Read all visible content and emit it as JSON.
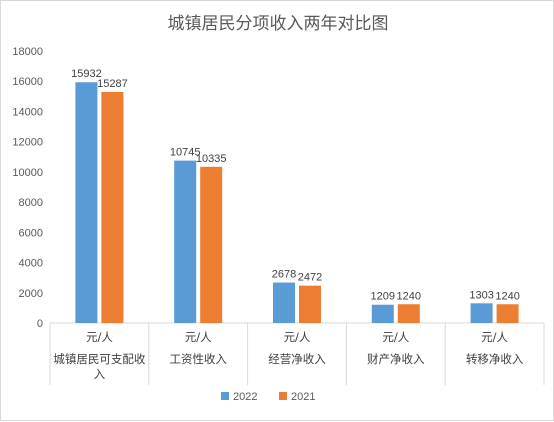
{
  "chart_data": {
    "type": "bar",
    "title": "城镇居民分项收入两年对比图",
    "unit_label": "元/人",
    "categories": [
      [
        "城镇居民可支配收",
        "入"
      ],
      [
        "工资性收入"
      ],
      [
        "经营净收入"
      ],
      [
        "财产净收入"
      ],
      [
        "转移净收入"
      ]
    ],
    "series": [
      {
        "name": "2022",
        "color": "#5b9bd5",
        "values": [
          15932,
          10745,
          2678,
          1209,
          1303
        ]
      },
      {
        "name": "2021",
        "color": "#ed7d31",
        "values": [
          15287,
          10335,
          2472,
          1240,
          1240
        ]
      }
    ],
    "ylim": [
      0,
      18000
    ],
    "yticks": [
      0,
      2000,
      4000,
      6000,
      8000,
      10000,
      12000,
      14000,
      16000,
      18000
    ],
    "grid": false,
    "legend_position": "bottom"
  }
}
